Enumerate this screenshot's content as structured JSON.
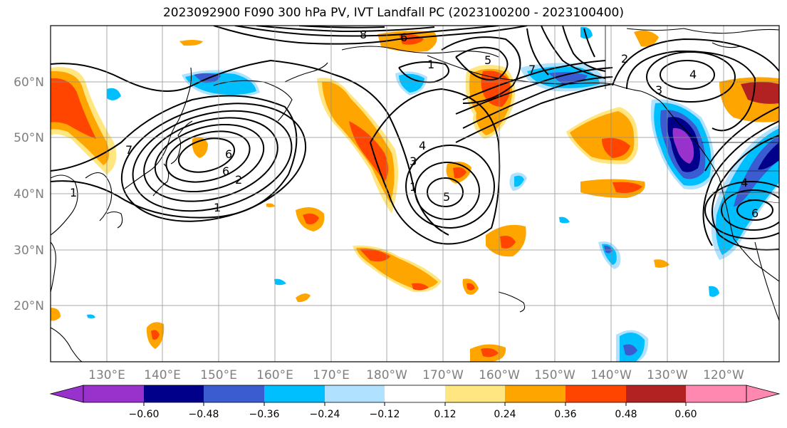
{
  "title": "2023092900 F090 300 hPa PV, IVT Landfall PC (2023100200 - 2023100400)",
  "lat_labels": [
    "60°N",
    "50°N",
    "40°N",
    "30°N",
    "20°N"
  ],
  "lon_labels": [
    "130°E",
    "140°E",
    "150°E",
    "160°E",
    "170°E",
    "180°W",
    "170°W",
    "160°W",
    "150°W",
    "140°W",
    "130°W",
    "120°W"
  ],
  "colorbar": {
    "colors": [
      "#9932cc",
      "#00008b",
      "#3a5cd0",
      "#00bfff",
      "#b0e2ff",
      "#ffffff",
      "#ffe680",
      "#ffa500",
      "#ff4500",
      "#b22222",
      "#ff88b0"
    ],
    "tick_labels": [
      "−0.60",
      "−0.48",
      "−0.36",
      "−0.24",
      "−0.12",
      "0.12",
      "0.24",
      "0.36",
      "0.48",
      "0.60"
    ]
  },
  "contour_labels": [
    "8",
    "6",
    "1",
    "5",
    "7",
    "2",
    "4",
    "3",
    "6",
    "7",
    "4",
    "3",
    "5",
    "6",
    "2",
    "1",
    "1",
    "1",
    "6",
    "4"
  ]
}
